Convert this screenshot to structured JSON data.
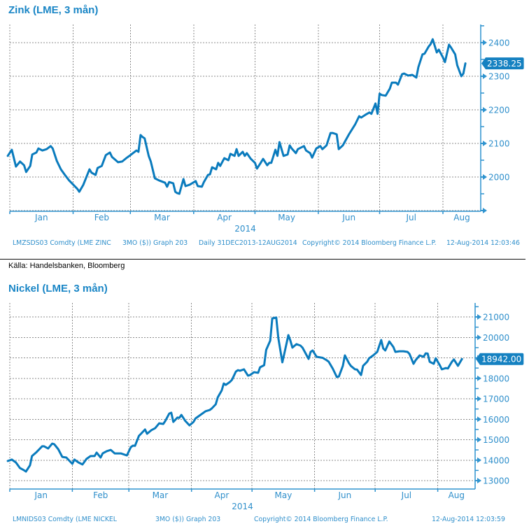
{
  "source_note": "Källa: Handelsbanken, Bloomberg",
  "chart_data": [
    {
      "id": "zinc",
      "type": "line",
      "title": "Zink (LME, 3 mån)",
      "xlabel": "2014",
      "ylabel": "",
      "x_unit": "day of year 2014 (0 = 31 Dec 2013)",
      "xlim": [
        1,
        231.5
      ],
      "ylim": [
        1898,
        2454
      ],
      "grid": true,
      "y_axis_side": "right",
      "yticks": [
        1900,
        2000,
        2100,
        2200,
        2300,
        2400
      ],
      "ytick_labels": [
        {
          "value": 2000,
          "label": "2000"
        },
        {
          "value": 2100,
          "label": "2100"
        },
        {
          "value": 2200,
          "label": "2200"
        },
        {
          "value": 2300,
          "label": "2300"
        },
        {
          "value": 2400,
          "label": "2400"
        }
      ],
      "yminor_step": 50,
      "month_starts": [
        1,
        32,
        60,
        91,
        121,
        152,
        182,
        213
      ],
      "month_labels": [
        "Jan",
        "Feb",
        "Mar",
        "Apr",
        "May",
        "Jun",
        "Jul",
        "Aug"
      ],
      "last_value_label": "2338.25",
      "series": [
        {
          "name": "LMZSDS03 Comdty (LME ZINC 3MO ($))",
          "x": [
            0,
            2,
            4,
            6,
            8,
            9,
            11,
            12,
            14,
            15,
            17,
            19,
            21,
            22,
            24,
            26,
            28,
            30,
            34,
            35,
            37,
            40,
            41,
            43,
            44,
            46,
            48,
            50,
            51,
            54,
            56,
            58,
            60,
            63,
            64,
            65,
            66,
            67,
            69,
            70,
            72,
            74,
            77,
            78,
            79,
            81,
            82,
            83,
            84,
            86,
            87,
            89,
            92,
            93,
            95,
            96,
            98,
            99,
            100,
            102,
            103,
            104,
            106,
            108,
            109,
            111,
            112,
            113,
            115,
            116,
            117,
            119,
            121,
            122,
            124,
            125,
            127,
            128,
            129,
            131,
            132,
            133,
            135,
            137,
            138,
            139,
            141,
            142,
            145,
            146,
            148,
            149,
            151,
            153,
            154,
            156,
            158,
            159,
            161,
            162,
            164,
            167,
            170,
            172,
            173,
            175,
            177,
            178,
            180,
            181,
            182,
            183,
            185,
            187,
            188,
            190,
            191,
            193,
            194,
            196,
            198,
            200,
            201,
            203,
            204,
            206,
            207,
            208,
            210,
            211,
            213,
            214,
            216,
            217,
            219,
            220,
            222,
            223,
            224
          ],
          "values": [
            2063,
            2081,
            2031,
            2046,
            2035,
            2015,
            2033,
            2067,
            2073,
            2085,
            2079,
            2083,
            2092,
            2085,
            2048,
            2023,
            2006,
            1990,
            1965,
            1956,
            1977,
            2023,
            2013,
            2006,
            2027,
            2033,
            2065,
            2073,
            2060,
            2044,
            2046,
            2056,
            2065,
            2079,
            2075,
            2125,
            2119,
            2115,
            2063,
            2046,
            1996,
            1990,
            1983,
            1971,
            1985,
            1981,
            1956,
            1952,
            1950,
            1994,
            1973,
            1977,
            1988,
            1973,
            1971,
            1985,
            2006,
            2008,
            2029,
            2023,
            2042,
            2033,
            2056,
            2050,
            2069,
            2063,
            2083,
            2063,
            2075,
            2063,
            2071,
            2054,
            2042,
            2025,
            2044,
            2054,
            2035,
            2042,
            2042,
            2081,
            2063,
            2104,
            2063,
            2067,
            2094,
            2085,
            2071,
            2083,
            2092,
            2079,
            2071,
            2058,
            2085,
            2092,
            2083,
            2094,
            2131,
            2131,
            2127,
            2083,
            2094,
            2127,
            2156,
            2181,
            2177,
            2185,
            2192,
            2188,
            2219,
            2188,
            2248,
            2244,
            2242,
            2263,
            2281,
            2281,
            2275,
            2306,
            2308,
            2302,
            2304,
            2296,
            2327,
            2365,
            2367,
            2388,
            2396,
            2410,
            2371,
            2379,
            2356,
            2342,
            2394,
            2385,
            2365,
            2333,
            2300,
            2308,
            2338.25
          ]
        }
      ],
      "footer": [
        "LMZSDS03 Comdty (LME ZINC",
        "3MO ($)) Graph 203",
        "Daily 31DEC2013-12AUG2014",
        "Copyright© 2014 Bloomberg Finance L.P.",
        "12-Aug-2014 12:03:46"
      ]
    },
    {
      "id": "nickel",
      "type": "line",
      "title": "Nickel (LME, 3 mån)",
      "xlabel": "2014",
      "ylabel": "",
      "x_unit": "day of year 2014 (0 = 31 Dec 2013)",
      "xlim": [
        1,
        231.5
      ],
      "ylim": [
        12590,
        21684
      ],
      "grid": true,
      "y_axis_side": "right",
      "yticks": [
        13000,
        14000,
        15000,
        16000,
        17000,
        18000,
        19000,
        20000,
        21000
      ],
      "ytick_labels": [
        {
          "value": 13000,
          "label": "13000"
        },
        {
          "value": 14000,
          "label": "14000"
        },
        {
          "value": 15000,
          "label": "15000"
        },
        {
          "value": 16000,
          "label": "16000"
        },
        {
          "value": 17000,
          "label": "17000"
        },
        {
          "value": 18000,
          "label": "18000"
        },
        {
          "value": 20000,
          "label": "20000"
        },
        {
          "value": 21000,
          "label": "21000"
        }
      ],
      "yminor_step": 500,
      "month_starts": [
        1,
        32,
        60,
        91,
        121,
        152,
        182,
        213
      ],
      "month_labels": [
        "Jan",
        "Feb",
        "Mar",
        "Apr",
        "May",
        "Jun",
        "Jul",
        "Aug"
      ],
      "last_value_label": "18942.00",
      "series": [
        {
          "name": "LMNIDS03 Comdty (LME NICKEL 3MO ($))",
          "x": [
            0,
            2,
            4,
            6,
            8,
            9,
            11,
            12,
            14,
            17,
            18,
            20,
            22,
            23,
            25,
            27,
            29,
            32,
            33,
            35,
            37,
            39,
            41,
            43,
            44,
            46,
            47,
            49,
            51,
            53,
            56,
            59,
            61,
            62,
            63,
            65,
            66,
            68,
            69,
            71,
            73,
            75,
            77,
            78,
            80,
            81,
            82,
            84,
            85,
            86,
            88,
            90,
            92,
            93,
            96,
            98,
            100,
            101,
            103,
            104,
            106,
            107,
            108,
            110,
            111,
            113,
            114,
            115,
            117,
            119,
            120,
            122,
            124,
            125,
            127,
            128,
            130,
            131,
            133,
            134,
            136,
            137,
            139,
            140,
            141,
            143,
            145,
            146,
            149,
            150,
            151,
            153,
            156,
            158,
            159,
            161,
            163,
            164,
            166,
            167,
            169,
            170,
            172,
            173,
            175,
            176,
            178,
            179,
            181,
            183,
            185,
            186,
            187,
            189,
            191,
            192,
            194,
            196,
            198,
            199,
            201,
            202,
            204,
            206,
            207,
            208,
            209,
            211,
            212,
            214,
            215,
            216,
            217,
            218,
            220,
            221,
            223,
            224,
            225
          ],
          "values": [
            13960,
            14030,
            13890,
            13620,
            13510,
            13445,
            13750,
            14200,
            14370,
            14680,
            14680,
            14570,
            14810,
            14780,
            14540,
            14160,
            14130,
            13820,
            14030,
            13890,
            13790,
            14060,
            14200,
            14200,
            14370,
            14130,
            14330,
            14440,
            14500,
            14330,
            14330,
            14230,
            14640,
            14710,
            14700,
            15190,
            15290,
            15500,
            15290,
            15460,
            15560,
            15800,
            15770,
            15910,
            16280,
            16320,
            15870,
            16080,
            16070,
            16210,
            15910,
            15700,
            15870,
            16040,
            16250,
            16390,
            16450,
            16520,
            16730,
            17070,
            17410,
            17750,
            17680,
            17820,
            17920,
            18330,
            18400,
            18370,
            18440,
            18130,
            18160,
            18300,
            18270,
            18540,
            18640,
            19390,
            19840,
            20930,
            20970,
            19980,
            18780,
            19220,
            20110,
            19840,
            19500,
            19670,
            19600,
            19500,
            18950,
            19290,
            19360,
            19050,
            19000,
            18880,
            18810,
            18470,
            18060,
            18090,
            18610,
            19120,
            18740,
            18600,
            18440,
            18430,
            18160,
            18610,
            18810,
            18980,
            19120,
            19290,
            19870,
            19460,
            19360,
            19800,
            19530,
            19290,
            19320,
            19320,
            19290,
            19190,
            18710,
            18880,
            19120,
            19050,
            19220,
            19210,
            18810,
            18710,
            18980,
            18640,
            18440,
            18470,
            18500,
            18480,
            18810,
            18920,
            18610,
            18780,
            18942
          ]
        }
      ],
      "footer": [
        "LMNIDS03 Comdty (LME NICKEL",
        "3MO ($)) Graph 203",
        "Copyright© 2014 Bloomberg Finance L.P.",
        "12-Aug-2014 12:03:59"
      ]
    }
  ]
}
